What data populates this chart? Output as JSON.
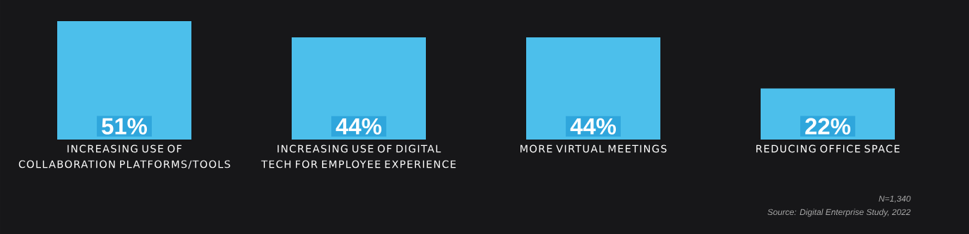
{
  "chart_data": {
    "type": "bar",
    "categories": [
      "INCREASING USE OF COLLABORATION PLATFORMS/TOOLS",
      "INCREASING USE OF DIGITAL TECH FOR EMPLOYEE EXPERIENCE",
      "MORE VIRTUAL MEETINGS",
      "REDUCING OFFICE SPACE"
    ],
    "values": [
      51,
      44,
      44,
      22
    ],
    "value_labels": [
      "51%",
      "44%",
      "44%",
      "22%"
    ],
    "color": "#4cbfeb",
    "annotations": [
      "N=1,340",
      "Source: Digital Enterprise Study, 2022"
    ]
  }
}
